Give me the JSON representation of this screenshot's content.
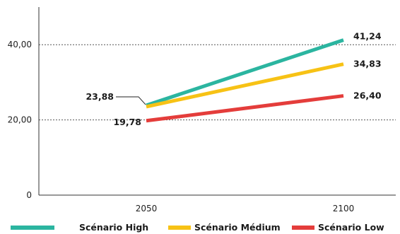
{
  "chart_data": {
    "type": "line",
    "x": [
      "2050",
      "2100"
    ],
    "y_ticks": [
      "0",
      "20,00",
      "40,00"
    ],
    "ylim": [
      0,
      50
    ],
    "grid": "dashed horizontal at 20 and 40",
    "legend_position": "bottom",
    "series": [
      {
        "name": "Scénario High",
        "color": "#2bb5a0",
        "values": [
          23.88,
          41.24
        ],
        "labels": [
          "23,88",
          "41,24"
        ]
      },
      {
        "name": "Scénario Médium",
        "color": "#f7c215",
        "values": [
          23.5,
          34.83
        ],
        "labels": [
          "",
          "34,83"
        ]
      },
      {
        "name": "Scénario Low",
        "color": "#e43d3b",
        "values": [
          19.78,
          26.4
        ],
        "labels": [
          "19,78",
          "26,40"
        ]
      }
    ]
  }
}
